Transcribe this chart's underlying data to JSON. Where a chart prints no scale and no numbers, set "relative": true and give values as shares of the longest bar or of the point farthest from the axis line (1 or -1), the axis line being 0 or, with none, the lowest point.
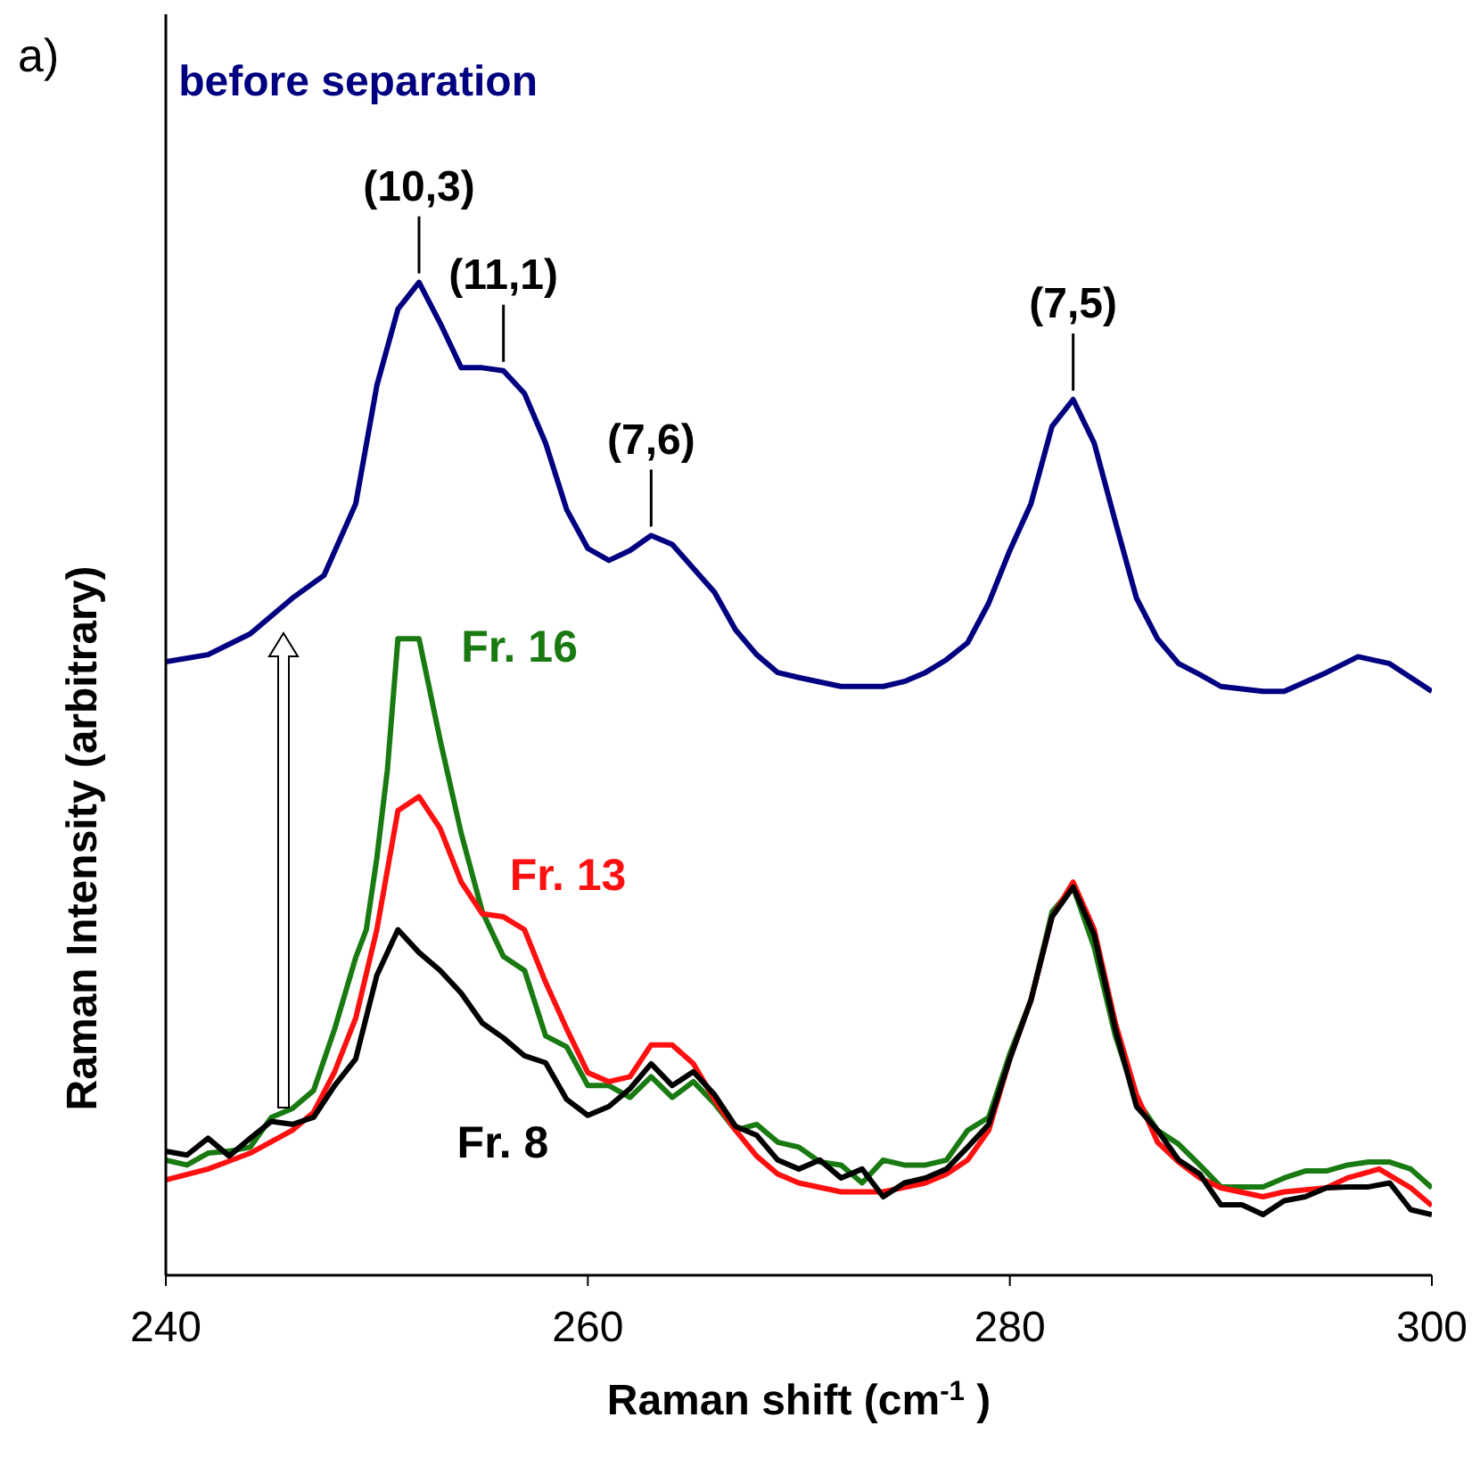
{
  "chart_data": {
    "type": "line",
    "relative": true,
    "xlabel": "Raman shift (cm$^{-1}$ )",
    "ylabel": "Raman Intensity  (arbitrary)",
    "xlim": [
      240,
      300
    ],
    "xticks": [
      240,
      260,
      280,
      300
    ],
    "grid": false,
    "legend": false,
    "marker": "none",
    "line_style": "solid",
    "annotations": [
      "a)",
      {
        "text": "(10,3)",
        "x": 252,
        "y": 1.0
      },
      {
        "text": "(11,1)",
        "x": 256,
        "y": 0.911
      },
      {
        "text": "(7,6)",
        "x": 263,
        "y": 0.745
      },
      {
        "text": "(7,5)",
        "x": 283,
        "y": 0.882
      }
    ],
    "series": [
      {
        "name": "before separation",
        "color": "#000080",
        "x": [
          240,
          242,
          244,
          246,
          247.5,
          249,
          250,
          251,
          252,
          253,
          254,
          255,
          256,
          257,
          258,
          259,
          260,
          261,
          262,
          263,
          264,
          265,
          266,
          267,
          268,
          269,
          270,
          272,
          274,
          275,
          276,
          277,
          278,
          279,
          280,
          281,
          282,
          283,
          284,
          285,
          286,
          287,
          288,
          289,
          290,
          292,
          293,
          295,
          296.5,
          298,
          300
        ],
        "values": [
          0.618,
          0.625,
          0.646,
          0.682,
          0.705,
          0.777,
          0.896,
          0.973,
          1.0,
          0.959,
          0.914,
          0.914,
          0.911,
          0.888,
          0.838,
          0.771,
          0.732,
          0.72,
          0.73,
          0.745,
          0.736,
          0.712,
          0.688,
          0.65,
          0.625,
          0.607,
          0.602,
          0.593,
          0.593,
          0.598,
          0.607,
          0.62,
          0.637,
          0.677,
          0.73,
          0.777,
          0.855,
          0.882,
          0.838,
          0.759,
          0.682,
          0.641,
          0.616,
          0.605,
          0.593,
          0.588,
          0.588,
          0.607,
          0.623,
          0.616,
          0.588
        ]
      },
      {
        "name": "Fr. 16",
        "color": "#1a7a12",
        "x": [
          240,
          241,
          242,
          243,
          244,
          245,
          246,
          247,
          248,
          249,
          249.5,
          250,
          250.5,
          251,
          252,
          253,
          254,
          255,
          256,
          257,
          258,
          259,
          260,
          261,
          262,
          263,
          264,
          265,
          266,
          267,
          268,
          269,
          270,
          271,
          272,
          273,
          274,
          275,
          276,
          277,
          278,
          279,
          280,
          281,
          282,
          283,
          284,
          285,
          286,
          287,
          288,
          289,
          290,
          291,
          292,
          293,
          294,
          295,
          296,
          297,
          298,
          299,
          300
        ],
        "values": [
          0.116,
          0.111,
          0.123,
          0.125,
          0.129,
          0.159,
          0.168,
          0.186,
          0.248,
          0.32,
          0.348,
          0.42,
          0.509,
          0.641,
          0.641,
          0.539,
          0.445,
          0.366,
          0.321,
          0.307,
          0.241,
          0.23,
          0.191,
          0.191,
          0.179,
          0.2,
          0.179,
          0.195,
          0.173,
          0.146,
          0.152,
          0.134,
          0.129,
          0.114,
          0.111,
          0.093,
          0.116,
          0.111,
          0.111,
          0.116,
          0.146,
          0.159,
          0.223,
          0.277,
          0.366,
          0.391,
          0.33,
          0.241,
          0.177,
          0.146,
          0.132,
          0.111,
          0.089,
          0.089,
          0.089,
          0.098,
          0.105,
          0.105,
          0.111,
          0.114,
          0.114,
          0.107,
          0.088
        ]
      },
      {
        "name": "Fr. 13",
        "color": "#ff1010",
        "x": [
          240,
          242,
          244,
          246,
          247,
          248,
          249,
          250,
          251,
          252,
          253,
          254,
          255,
          256,
          257,
          258,
          259,
          260,
          261,
          262,
          263,
          264,
          265,
          266,
          267,
          268,
          269,
          270,
          272,
          274,
          276,
          277,
          278,
          279,
          280,
          281,
          282,
          283,
          284,
          285,
          286,
          287,
          288,
          289,
          290,
          292,
          293,
          295,
          296,
          297.5,
          299,
          300
        ],
        "values": [
          0.096,
          0.107,
          0.123,
          0.146,
          0.164,
          0.205,
          0.259,
          0.348,
          0.468,
          0.482,
          0.45,
          0.396,
          0.364,
          0.361,
          0.348,
          0.295,
          0.248,
          0.204,
          0.195,
          0.2,
          0.232,
          0.232,
          0.213,
          0.177,
          0.146,
          0.12,
          0.102,
          0.093,
          0.084,
          0.084,
          0.093,
          0.102,
          0.116,
          0.146,
          0.218,
          0.277,
          0.361,
          0.396,
          0.348,
          0.254,
          0.182,
          0.134,
          0.114,
          0.098,
          0.088,
          0.079,
          0.084,
          0.088,
          0.098,
          0.107,
          0.088,
          0.07
        ]
      },
      {
        "name": "Fr. 8",
        "color": "#000000",
        "x": [
          240,
          241,
          242,
          243,
          244,
          245,
          246,
          247,
          248,
          249,
          250,
          251,
          252,
          253,
          254,
          255,
          256,
          257,
          258,
          259,
          260,
          261,
          262,
          263,
          264,
          265,
          266,
          267,
          268,
          269,
          270,
          271,
          272,
          273,
          274,
          275,
          276,
          277,
          278,
          279,
          280,
          281,
          282,
          283,
          284,
          285,
          286,
          287,
          288,
          289,
          290,
          291,
          292,
          293,
          294,
          295,
          296,
          297,
          298,
          299,
          300
        ],
        "values": [
          0.125,
          0.121,
          0.138,
          0.12,
          0.138,
          0.155,
          0.152,
          0.159,
          0.191,
          0.218,
          0.302,
          0.348,
          0.325,
          0.307,
          0.284,
          0.254,
          0.239,
          0.221,
          0.214,
          0.177,
          0.161,
          0.17,
          0.188,
          0.213,
          0.191,
          0.205,
          0.182,
          0.15,
          0.141,
          0.116,
          0.107,
          0.116,
          0.098,
          0.107,
          0.079,
          0.093,
          0.098,
          0.107,
          0.129,
          0.152,
          0.218,
          0.277,
          0.361,
          0.391,
          0.343,
          0.248,
          0.17,
          0.146,
          0.116,
          0.102,
          0.071,
          0.071,
          0.061,
          0.075,
          0.079,
          0.088,
          0.089,
          0.089,
          0.093,
          0.066,
          0.061
        ]
      }
    ]
  }
}
